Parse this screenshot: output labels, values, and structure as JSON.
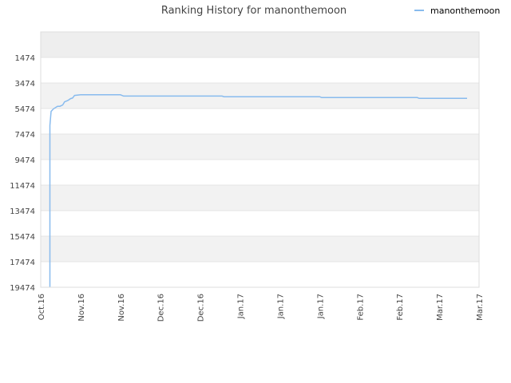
{
  "chart_data": {
    "type": "line",
    "title": "Ranking History for manonthemoon",
    "xlabel": "",
    "ylabel": "",
    "y_inverted": true,
    "ylim": [
      19474,
      -526
    ],
    "y_ticks": [
      "1474",
      "3474",
      "5474",
      "7474",
      "9474",
      "11474",
      "13474",
      "15474",
      "17474",
      "19474"
    ],
    "x_ticks": [
      "Oct.16",
      "Nov.16",
      "Nov.16",
      "Dec.16",
      "Dec.16",
      "Jan.17",
      "Jan.17",
      "Jan.17",
      "Feb.17",
      "Feb.17",
      "Mar.17",
      "Mar.17"
    ],
    "grid": "horizontal-bands",
    "legend": "top-right",
    "series": [
      {
        "name": "manonthemoon",
        "color": "#88bbee",
        "x_note": "x values are positions along the Oct.16 – Mar.17 date axis (0 = Oct.16, 11 = Mar.17)",
        "points": [
          [
            0.23,
            19474
          ],
          [
            0.23,
            6800
          ],
          [
            0.26,
            5700
          ],
          [
            0.32,
            5500
          ],
          [
            0.42,
            5300
          ],
          [
            0.48,
            5300
          ],
          [
            0.55,
            5200
          ],
          [
            0.6,
            4950
          ],
          [
            0.68,
            4850
          ],
          [
            0.75,
            4700
          ],
          [
            0.8,
            4650
          ],
          [
            0.85,
            4450
          ],
          [
            1.0,
            4400
          ],
          [
            1.5,
            4400
          ],
          [
            2.0,
            4400
          ],
          [
            2.08,
            4500
          ],
          [
            3.0,
            4500
          ],
          [
            4.0,
            4500
          ],
          [
            4.55,
            4500
          ],
          [
            4.6,
            4550
          ],
          [
            5.5,
            4550
          ],
          [
            6.5,
            4550
          ],
          [
            7.0,
            4550
          ],
          [
            7.05,
            4620
          ],
          [
            8.0,
            4620
          ],
          [
            9.0,
            4620
          ],
          [
            9.45,
            4620
          ],
          [
            9.5,
            4680
          ],
          [
            10.7,
            4680
          ]
        ]
      }
    ]
  }
}
